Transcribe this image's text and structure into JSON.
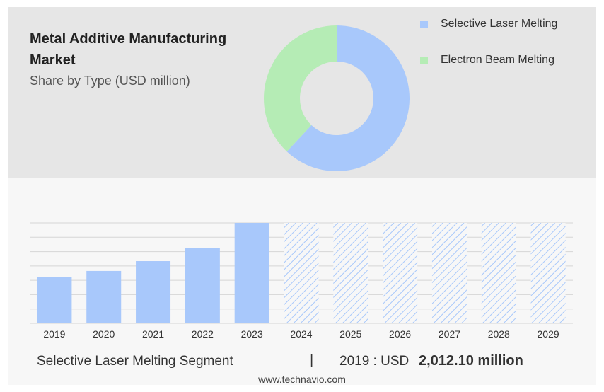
{
  "header": {
    "title": "Metal Additive Manufacturing Market",
    "subtitle": "Share by Type (USD million)"
  },
  "legend": [
    {
      "label": "Selective Laser Melting",
      "color": "#a8c8fb"
    },
    {
      "label": "Electron Beam Melting",
      "color": "#b5ecb5"
    }
  ],
  "footer": {
    "segment": "Selective Laser Melting Segment",
    "separator": "|",
    "year_label": "2019 : USD",
    "value": "2,012.10 million",
    "source": "www.technavio.com"
  },
  "chart_data": [
    {
      "type": "pie",
      "donut": true,
      "title": "Share by Type (USD million)",
      "labels": [
        "Selective Laser Melting",
        "Electron Beam Melting"
      ],
      "values": [
        62,
        38
      ],
      "colors": [
        "#a8c8fb",
        "#b5ecb5"
      ]
    },
    {
      "type": "bar",
      "categories": [
        "2019",
        "2020",
        "2021",
        "2022",
        "2023",
        "2024",
        "2025",
        "2026",
        "2027",
        "2028",
        "2029"
      ],
      "values": [
        2012.1,
        2290,
        2720,
        3290,
        4390,
        4390,
        4390,
        4390,
        4390,
        4390,
        4390
      ],
      "forecast_from": "2024",
      "ylim": [
        0,
        4390
      ],
      "grid": true,
      "bar_color": "#a8c8fb"
    }
  ]
}
